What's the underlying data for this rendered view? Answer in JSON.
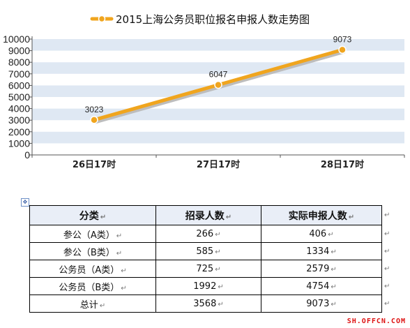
{
  "chart_data": {
    "type": "line",
    "title": "2015上海公务员职位报名申报人数走势图",
    "categories": [
      "26日17时",
      "27日17时",
      "28日17时"
    ],
    "series": [
      {
        "values": [
          3023,
          6047,
          9073
        ],
        "color": "#f0a51e"
      }
    ],
    "ylim": [
      0,
      10000
    ],
    "yticks": [
      0,
      1000,
      2000,
      3000,
      4000,
      5000,
      6000,
      7000,
      8000,
      9000,
      10000
    ],
    "grid": "alternating horizontal bands",
    "band_color": "#dfe8f3",
    "legend": "top-center"
  },
  "table": {
    "headers": [
      "分类",
      "招录人数",
      "实际申报人数"
    ],
    "rows": [
      [
        "参公（A类）",
        "266",
        "406"
      ],
      [
        "参公（B类）",
        "585",
        "1334"
      ],
      [
        "公务员（A类）",
        "725",
        "2579"
      ],
      [
        "公务员（B类）",
        "1992",
        "4754"
      ],
      [
        "总计",
        "3568",
        "9073"
      ]
    ]
  },
  "table_anchor_icon": "move-handle-icon",
  "paragraph_mark": "↵",
  "watermark": "SH.OFFCN.COM"
}
